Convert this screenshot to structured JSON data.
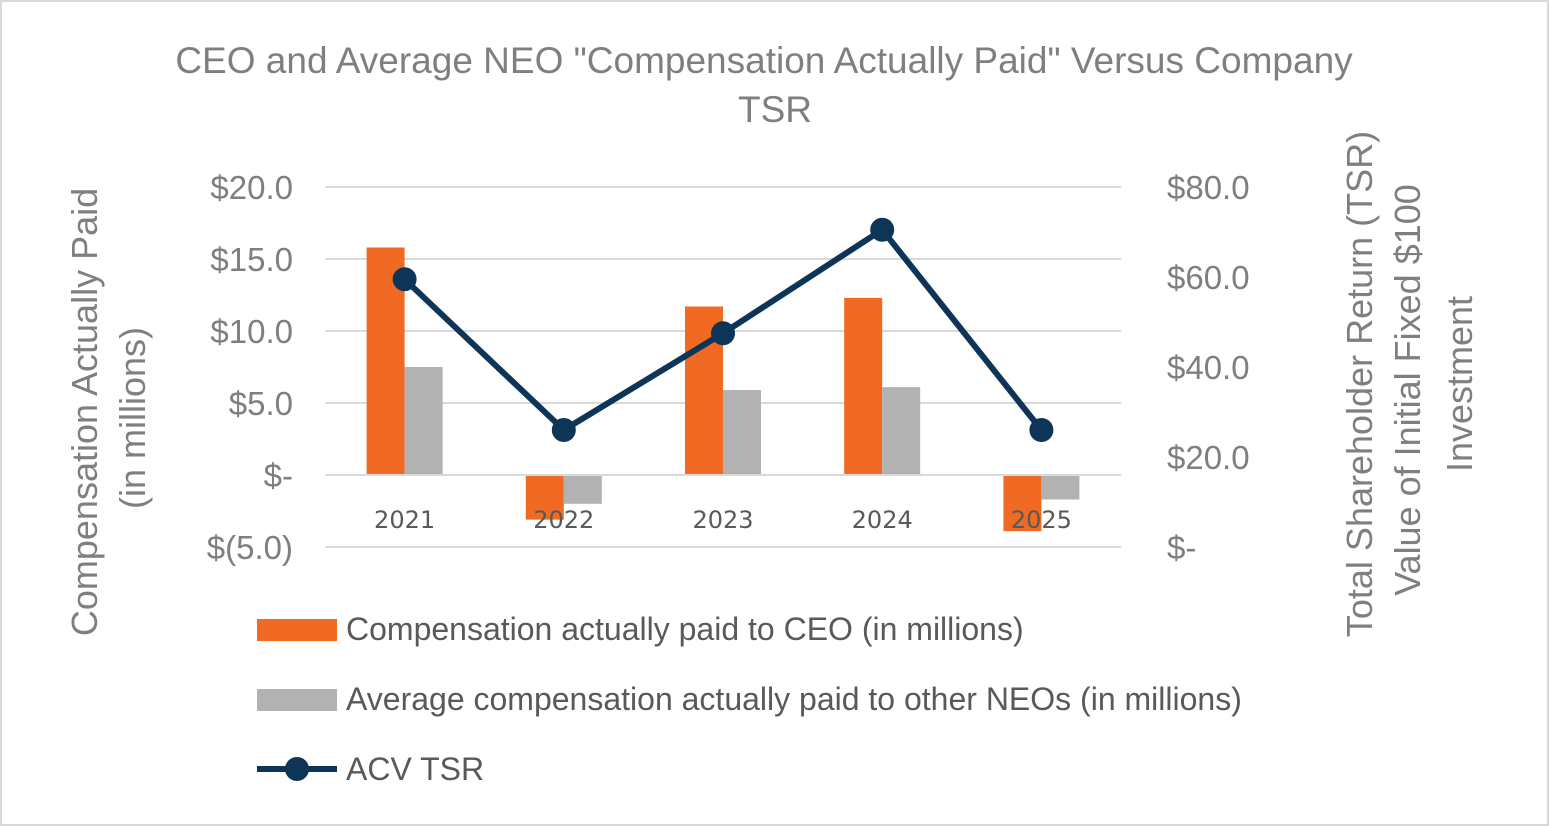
{
  "chart_data": {
    "type": "bar",
    "title": "CEO and Average NEO \"Compensation Actually Paid\" Versus Company TSR",
    "title_lines": [
      "CEO and Average NEO \"Compensation Actually Paid\" Versus Company",
      "TSR"
    ],
    "categories": [
      "2021",
      "2022",
      "2023",
      "2024",
      "2025"
    ],
    "series": [
      {
        "name": "Compensation actually paid to CEO (in millions)",
        "type": "bar",
        "axis": "left",
        "color": "#f06a24",
        "values": [
          15.8,
          -3.1,
          11.7,
          12.3,
          -3.9
        ]
      },
      {
        "name": "Average compensation actually paid to other NEOs (in millions)",
        "type": "bar",
        "axis": "left",
        "color": "#b2b2b2",
        "values": [
          7.5,
          -2.0,
          5.9,
          6.1,
          -1.7
        ]
      },
      {
        "name": "ACV TSR",
        "type": "line",
        "axis": "right",
        "color": "#0e3557",
        "values": [
          59.5,
          26.0,
          47.5,
          70.5,
          26.0
        ]
      }
    ],
    "ylabel_lines": [
      "Compensation Actually Paid",
      "(in millions)"
    ],
    "y2label_lines": [
      "Total Shareholder Return (TSR)",
      "Value of Initial Fixed $100",
      "Investment"
    ],
    "ylim": [
      -5,
      20
    ],
    "y2lim": [
      0,
      80
    ],
    "yticks": [
      20,
      15,
      10,
      5,
      0,
      -5
    ],
    "ytick_labels": [
      "$20.0",
      "$15.0",
      "$10.0",
      "$5.0",
      "$-",
      "$(5.0)"
    ],
    "y2ticks": [
      80,
      60,
      40,
      20,
      0
    ],
    "y2tick_labels": [
      "$80.0",
      "$60.0",
      "$40.0",
      "$20.0",
      "$-"
    ],
    "grid": true,
    "legend_position": "bottom"
  }
}
